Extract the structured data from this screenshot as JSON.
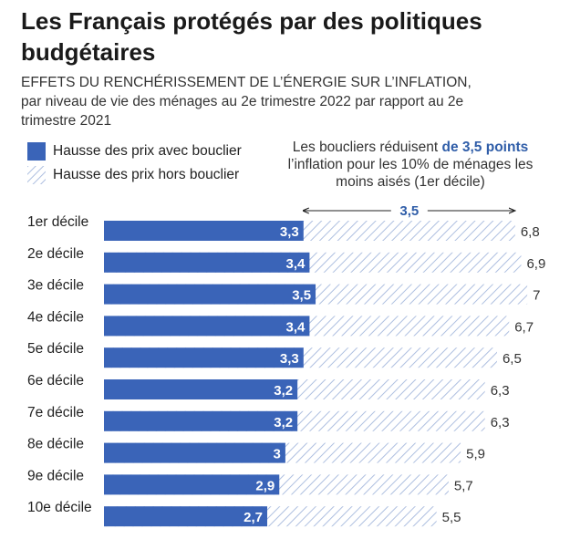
{
  "header": {
    "title": "Les Français protégés par des politiques budgétaires",
    "subtitle_caps": "EFFETS DU RENCHÉRISSEMENT DE L’ÉNERGIE SUR L’INFLATION,",
    "subtitle_rest": "par niveau de vie des ménages au 2e trimestre 2022 par rapport au 2e trimestre 2021"
  },
  "legend": {
    "with_shield": "Hausse des prix avec bouclier",
    "without_shield": "Hausse des prix hors bouclier"
  },
  "annotation": {
    "prefix": "Les boucliers réduisent",
    "highlight": "de 3,5 points",
    "suffix": "l’inflation pour les 10% de ménages les moins aisés (1er décile)",
    "bracket_label": "3,5"
  },
  "colors": {
    "solid": "#3a64b8",
    "hatch": "#aebfe0",
    "text": "#222222",
    "accent": "#2f5da8"
  },
  "chart_data": {
    "type": "bar",
    "orientation": "horizontal",
    "stacked_overlay": true,
    "categories": [
      "1er décile",
      "2e décile",
      "3e décile",
      "4e décile",
      "5e décile",
      "6e décile",
      "7e décile",
      "8e décile",
      "9e décile",
      "10e décile"
    ],
    "series": [
      {
        "name": "Hausse des prix avec bouclier",
        "values": [
          3.3,
          3.4,
          3.5,
          3.4,
          3.3,
          3.2,
          3.2,
          3.0,
          2.9,
          2.7
        ],
        "labels": [
          "3,3",
          "3,4",
          "3,5",
          "3,4",
          "3,3",
          "3,2",
          "3,2",
          "3",
          "2,9",
          "2,7"
        ]
      },
      {
        "name": "Hausse des prix hors bouclier",
        "values": [
          6.8,
          6.9,
          7.0,
          6.7,
          6.5,
          6.3,
          6.3,
          5.9,
          5.7,
          5.5
        ],
        "labels": [
          "6,8",
          "6,9",
          "7",
          "6,7",
          "6,5",
          "6,3",
          "6,3",
          "5,9",
          "5,7",
          "5,5"
        ]
      }
    ],
    "xlim": [
      0,
      7
    ],
    "grid": false
  }
}
